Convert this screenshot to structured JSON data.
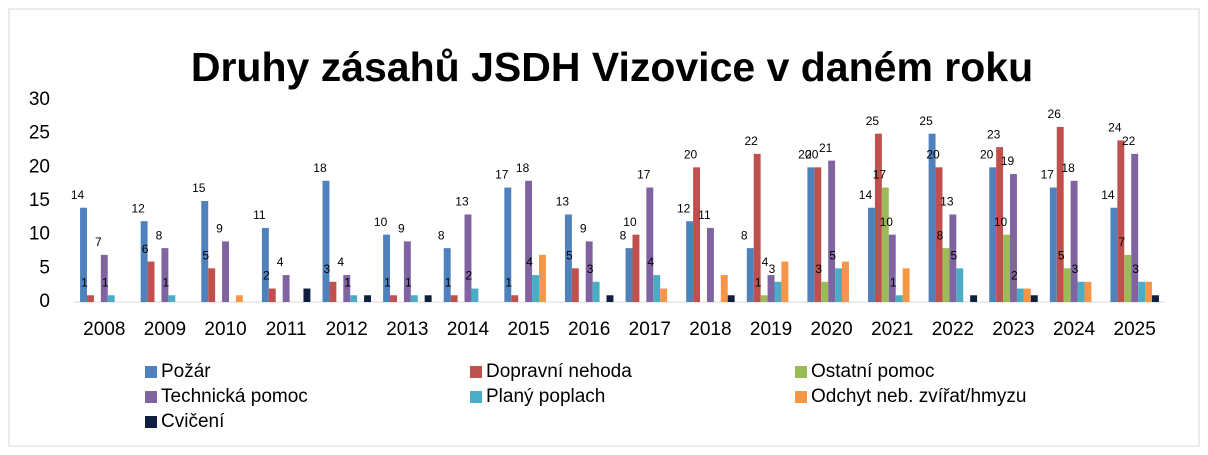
{
  "chart_data": {
    "type": "bar",
    "title": "Druhy zásahů JSDH Vizovice v daném roku",
    "categories": [
      "2008",
      "2009",
      "2010",
      "2011",
      "2012",
      "2013",
      "2014",
      "2015",
      "2016",
      "2017",
      "2018",
      "2019",
      "2020",
      "2021",
      "2022",
      "2023",
      "2024",
      "2025"
    ],
    "ylim": [
      0,
      30
    ],
    "yticks": [
      0,
      5,
      10,
      15,
      20,
      25,
      30
    ],
    "grid": false,
    "legend": "bottom",
    "series": [
      {
        "name": "Požár",
        "color": "#4f81bd",
        "data_labels": true,
        "values": [
          14,
          12,
          15,
          11,
          18,
          10,
          8,
          17,
          13,
          8,
          12,
          8,
          20,
          14,
          25,
          20,
          17,
          14
        ]
      },
      {
        "name": "Dopravní nehoda",
        "color": "#c0504d",
        "data_labels": true,
        "values": [
          1,
          6,
          5,
          2,
          3,
          1,
          1,
          1,
          5,
          10,
          20,
          22,
          20,
          25,
          20,
          23,
          26,
          24
        ]
      },
      {
        "name": "Ostatní pomoc",
        "color": "#9bbb59",
        "data_labels": true,
        "values": [
          0,
          0,
          0,
          0,
          0,
          0,
          0,
          0,
          0,
          0,
          0,
          1,
          3,
          17,
          8,
          10,
          5,
          7
        ]
      },
      {
        "name": "Technická pomoc",
        "color": "#8064a2",
        "data_labels": true,
        "values": [
          7,
          8,
          9,
          4,
          4,
          9,
          13,
          18,
          9,
          17,
          11,
          4,
          21,
          10,
          13,
          19,
          18,
          22
        ]
      },
      {
        "name": "Planý poplach",
        "color": "#4bacc6",
        "data_labels": true,
        "values": [
          1,
          1,
          0,
          0,
          1,
          1,
          2,
          4,
          3,
          4,
          0,
          3,
          5,
          1,
          5,
          2,
          3,
          3
        ]
      },
      {
        "name": "Odchyt neb. zvířat/hmyzu",
        "color": "#f79646",
        "data_labels": false,
        "values": [
          0,
          0,
          1,
          0,
          0,
          0,
          0,
          7,
          0,
          2,
          4,
          6,
          6,
          5,
          0,
          2,
          3,
          3
        ]
      },
      {
        "name": "Cvičení",
        "color": "#0f1f3f",
        "data_labels": false,
        "values": [
          0,
          0,
          0,
          2,
          1,
          1,
          0,
          0,
          1,
          0,
          1,
          0,
          0,
          0,
          1,
          1,
          0,
          1
        ]
      }
    ]
  }
}
